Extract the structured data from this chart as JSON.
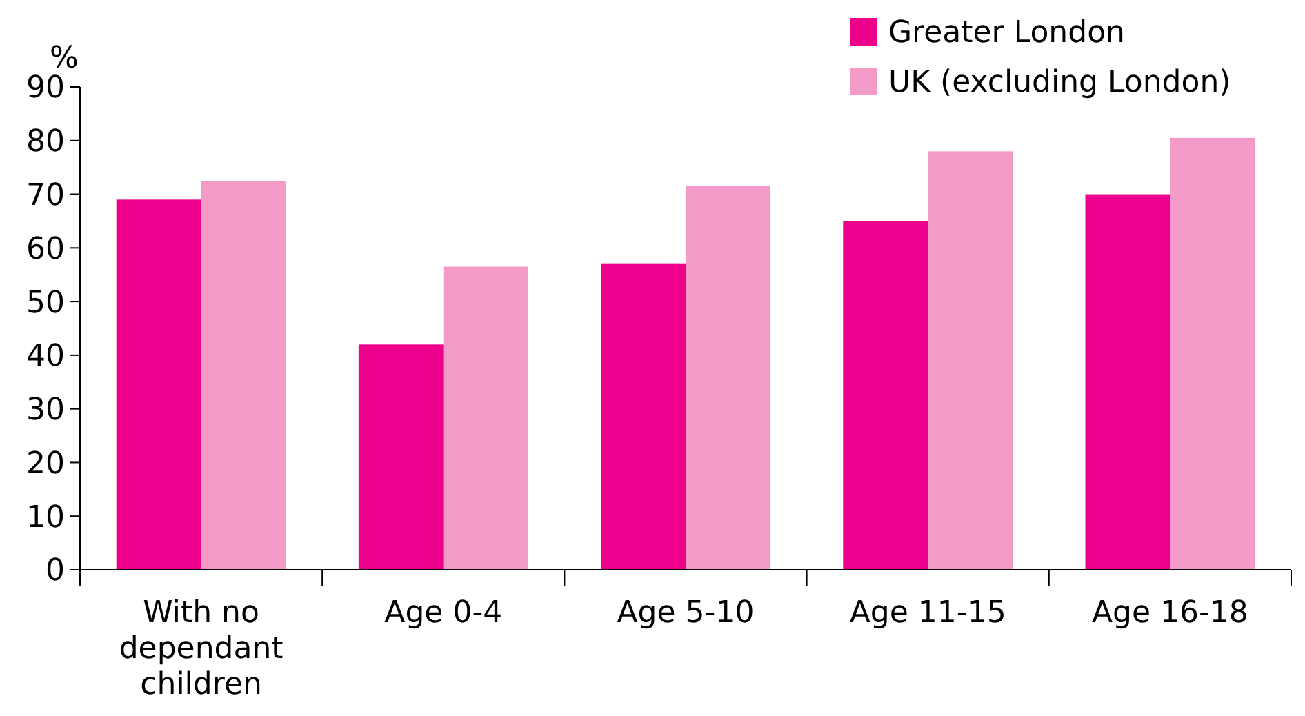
{
  "chart_data": {
    "type": "bar",
    "ylabel": "%",
    "categories": [
      "With no dependant children",
      "Age 0-4",
      "Age 5-10",
      "Age 11-15",
      "Age 16-18"
    ],
    "series": [
      {
        "name": "Greater London",
        "color": "#ec008c",
        "values": [
          69,
          42,
          57,
          65,
          70
        ]
      },
      {
        "name": "UK (excluding London)",
        "color": "#f49ac9",
        "values": [
          72.5,
          56.5,
          71.5,
          78,
          80.5
        ]
      }
    ],
    "ylim": [
      0,
      90
    ],
    "yticks": [
      0,
      10,
      20,
      30,
      40,
      50,
      60,
      70,
      80,
      90
    ],
    "grid": false,
    "legend": "top right"
  }
}
